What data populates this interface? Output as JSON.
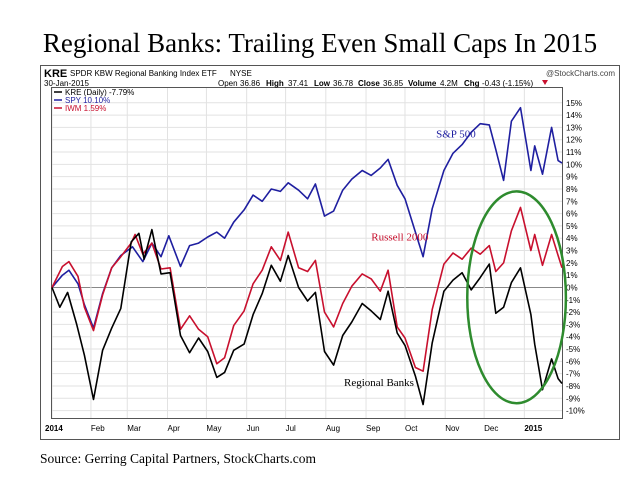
{
  "headline": "Regional Banks: Trailing Even Small Caps In 2015",
  "source": "Source: Gerring Capital Partners, StockCharts.com",
  "header": {
    "symbol": "KRE",
    "description": "SPDR KBW Regional Banking Index ETF",
    "exchange": "NYSE",
    "date": "30-Jan-2015",
    "open_label": "Open",
    "open": "36.86",
    "high_label": "High",
    "high": "37.41",
    "low_label": "Low",
    "low": "36.78",
    "close_label": "Close",
    "close": "36.85",
    "volume_label": "Volume",
    "volume": "4.2M",
    "chg_label": "Chg",
    "chg": "-0.43 (-1.15%)",
    "watermark": "@StockCharts.com"
  },
  "colors": {
    "kre": "#000000",
    "spy": "#1f1fa0",
    "iwm": "#c8102e",
    "highlight": "#2e8b2e",
    "grid": "#e2e2e2",
    "zero_line": "#888888"
  },
  "chart_data": {
    "type": "line",
    "ylim": [
      -10.6,
      16.2
    ],
    "y_ticks": [
      -10,
      -9,
      -8,
      -7,
      -6,
      -5,
      -4,
      -3,
      -2,
      -1,
      0,
      1,
      2,
      3,
      4,
      5,
      6,
      7,
      8,
      9,
      10,
      11,
      12,
      13,
      14,
      15
    ],
    "y_tick_labels": [
      "-10%",
      "-9%",
      "-8%",
      "-7%",
      "-6%",
      "-5%",
      "-4%",
      "-3%",
      "-2%",
      "-1%",
      "0%",
      "1%",
      "2%",
      "3%",
      "4%",
      "5%",
      "6%",
      "7%",
      "8%",
      "9%",
      "10%",
      "11%",
      "12%",
      "13%",
      "14%",
      "15%"
    ],
    "x_range": [
      "2014-01-02",
      "2015-01-30"
    ],
    "x_ticks": [
      "2014-01-02",
      "2014-02-01",
      "2014-03-01",
      "2014-04-01",
      "2014-05-01",
      "2014-06-01",
      "2014-07-01",
      "2014-08-01",
      "2014-09-01",
      "2014-10-01",
      "2014-11-01",
      "2014-12-01",
      "2015-01-01"
    ],
    "x_tick_labels": [
      "2014",
      "Feb",
      "Mar",
      "Apr",
      "May",
      "Jun",
      "Jul",
      "Aug",
      "Sep",
      "Oct",
      "Nov",
      "Dec",
      "2015"
    ],
    "annotations": [
      {
        "text": "S&P 500",
        "series": "SPY",
        "x": "2014-10-25",
        "y": 12.2
      },
      {
        "text": "Russell 2000",
        "series": "IWM",
        "x": "2014-09-05",
        "y": 3.8
      },
      {
        "text": "Regional Banks",
        "series": "KRE",
        "x": "2014-08-15",
        "y": -8.0
      }
    ],
    "highlight_ellipse": {
      "x_from": "2014-11-18",
      "x_to": "2015-02-02",
      "y_from": -9.4,
      "y_to": 7.8
    },
    "series": [
      {
        "name": "SPY",
        "legend": "SPY 10.10%",
        "x": [
          "2014-01-02",
          "2014-01-10",
          "2014-01-15",
          "2014-01-22",
          "2014-01-27",
          "2014-02-03",
          "2014-02-10",
          "2014-02-17",
          "2014-02-24",
          "2014-03-05",
          "2014-03-13",
          "2014-03-20",
          "2014-03-27",
          "2014-04-02",
          "2014-04-11",
          "2014-04-18",
          "2014-04-25",
          "2014-05-02",
          "2014-05-09",
          "2014-05-15",
          "2014-05-22",
          "2014-05-30",
          "2014-06-06",
          "2014-06-13",
          "2014-06-20",
          "2014-06-27",
          "2014-07-03",
          "2014-07-11",
          "2014-07-18",
          "2014-07-24",
          "2014-07-31",
          "2014-08-07",
          "2014-08-14",
          "2014-08-21",
          "2014-08-29",
          "2014-09-05",
          "2014-09-12",
          "2014-09-18",
          "2014-09-25",
          "2014-10-01",
          "2014-10-09",
          "2014-10-15",
          "2014-10-22",
          "2014-10-31",
          "2014-11-07",
          "2014-11-14",
          "2014-11-21",
          "2014-11-28",
          "2014-12-05",
          "2014-12-10",
          "2014-12-16",
          "2014-12-22",
          "2014-12-29",
          "2015-01-06",
          "2015-01-09",
          "2015-01-15",
          "2015-01-22",
          "2015-01-27",
          "2015-01-30"
        ],
        "values": [
          0,
          1.0,
          1.4,
          0.3,
          -1.4,
          -3.3,
          -0.5,
          1.6,
          2.6,
          3.3,
          2.1,
          3.6,
          2.5,
          4.2,
          1.7,
          3.4,
          3.6,
          4.1,
          4.5,
          4.0,
          5.3,
          6.3,
          7.5,
          7.0,
          8.0,
          7.8,
          8.5,
          7.9,
          7.2,
          8.4,
          5.8,
          6.2,
          7.9,
          8.8,
          9.5,
          9.1,
          9.7,
          10.4,
          8.3,
          7.2,
          4.5,
          2.5,
          6.4,
          9.5,
          10.9,
          11.6,
          12.6,
          13.3,
          13.2,
          11.2,
          8.7,
          13.5,
          14.6,
          9.5,
          11.5,
          9.2,
          13.0,
          10.3,
          10.1
        ]
      },
      {
        "name": "IWM",
        "legend": "IWM 1.59%",
        "x": [
          "2014-01-02",
          "2014-01-10",
          "2014-01-15",
          "2014-01-22",
          "2014-01-27",
          "2014-02-03",
          "2014-02-10",
          "2014-02-17",
          "2014-02-24",
          "2014-03-04",
          "2014-03-07",
          "2014-03-13",
          "2014-03-20",
          "2014-03-27",
          "2014-04-03",
          "2014-04-11",
          "2014-04-18",
          "2014-04-25",
          "2014-05-02",
          "2014-05-09",
          "2014-05-15",
          "2014-05-22",
          "2014-05-30",
          "2014-06-06",
          "2014-06-13",
          "2014-06-20",
          "2014-06-27",
          "2014-07-03",
          "2014-07-11",
          "2014-07-18",
          "2014-07-24",
          "2014-07-31",
          "2014-08-07",
          "2014-08-14",
          "2014-08-21",
          "2014-08-29",
          "2014-09-05",
          "2014-09-12",
          "2014-09-18",
          "2014-09-25",
          "2014-10-01",
          "2014-10-09",
          "2014-10-15",
          "2014-10-22",
          "2014-10-31",
          "2014-11-07",
          "2014-11-14",
          "2014-11-21",
          "2014-11-28",
          "2014-12-05",
          "2014-12-10",
          "2014-12-16",
          "2014-12-22",
          "2014-12-29",
          "2015-01-06",
          "2015-01-09",
          "2015-01-15",
          "2015-01-22",
          "2015-01-27",
          "2015-01-30"
        ],
        "values": [
          0,
          1.7,
          2.1,
          0.9,
          -1.6,
          -3.5,
          -0.6,
          1.6,
          2.5,
          3.6,
          4.3,
          2.7,
          3.6,
          1.5,
          1.6,
          -3.4,
          -2.3,
          -3.4,
          -4.0,
          -6.2,
          -5.7,
          -3.1,
          -1.9,
          0.3,
          1.4,
          3.3,
          2.2,
          4.5,
          1.6,
          1.3,
          2.2,
          -2.0,
          -3.2,
          -1.3,
          0.1,
          1.1,
          0.7,
          -0.3,
          1.4,
          -3.2,
          -4.1,
          -6.5,
          -6.8,
          -1.8,
          1.9,
          2.8,
          2.3,
          3.2,
          2.7,
          3.4,
          1.3,
          2.0,
          4.6,
          6.5,
          3.0,
          4.3,
          1.8,
          4.3,
          2.6,
          1.6
        ]
      },
      {
        "name": "KRE",
        "legend": "KRE (Daily) -7.79%",
        "x": [
          "2014-01-02",
          "2014-01-08",
          "2014-01-14",
          "2014-01-21",
          "2014-01-27",
          "2014-02-03",
          "2014-02-10",
          "2014-02-17",
          "2014-02-24",
          "2014-03-04",
          "2014-03-10",
          "2014-03-14",
          "2014-03-20",
          "2014-03-27",
          "2014-04-03",
          "2014-04-11",
          "2014-04-18",
          "2014-04-25",
          "2014-05-02",
          "2014-05-09",
          "2014-05-15",
          "2014-05-22",
          "2014-05-30",
          "2014-06-06",
          "2014-06-13",
          "2014-06-20",
          "2014-06-27",
          "2014-07-03",
          "2014-07-11",
          "2014-07-18",
          "2014-07-24",
          "2014-07-31",
          "2014-08-07",
          "2014-08-14",
          "2014-08-21",
          "2014-08-29",
          "2014-09-05",
          "2014-09-12",
          "2014-09-18",
          "2014-09-25",
          "2014-10-01",
          "2014-10-09",
          "2014-10-15",
          "2014-10-22",
          "2014-10-31",
          "2014-11-07",
          "2014-11-14",
          "2014-11-21",
          "2014-11-28",
          "2014-12-05",
          "2014-12-10",
          "2014-12-16",
          "2014-12-22",
          "2014-12-29",
          "2015-01-06",
          "2015-01-09",
          "2015-01-15",
          "2015-01-22",
          "2015-01-27",
          "2015-01-30"
        ],
        "values": [
          0,
          -1.6,
          -0.4,
          -3.0,
          -5.5,
          -9.1,
          -5.1,
          -3.3,
          -1.7,
          3.7,
          4.4,
          2.3,
          4.7,
          1.1,
          1.2,
          -3.9,
          -5.3,
          -4.1,
          -5.2,
          -7.3,
          -6.9,
          -5.1,
          -4.6,
          -2.2,
          -0.5,
          1.8,
          0.5,
          2.6,
          0.0,
          -1.1,
          -0.4,
          -5.2,
          -6.3,
          -3.9,
          -2.8,
          -1.3,
          -1.9,
          -2.6,
          -0.3,
          -3.7,
          -4.7,
          -7.2,
          -9.5,
          -4.5,
          -0.3,
          0.6,
          1.2,
          -0.2,
          0.8,
          1.9,
          -2.1,
          -1.6,
          0.4,
          1.6,
          -2.2,
          -4.6,
          -8.3,
          -5.8,
          -7.4,
          -7.8
        ]
      }
    ]
  }
}
